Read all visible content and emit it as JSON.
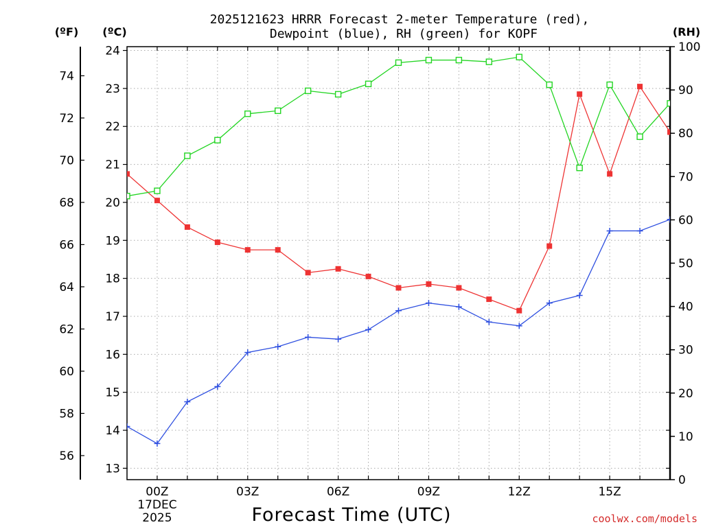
{
  "title_line1": "2025121623 HRRR Forecast 2-meter Temperature (red),",
  "title_line2": "Dewpoint (blue), RH (green) for KOPF",
  "credit": "coolwx.com/models",
  "chart_data": {
    "type": "line",
    "title": "2025121623 HRRR Forecast 2-meter Temperature (red), Dewpoint (blue), RH (green) for KOPF",
    "xlabel": "Forecast Time (UTC)",
    "x_units": "hours since 17DEC2025 00Z",
    "xlim": [
      -1,
      17
    ],
    "x_ticks": [
      {
        "x": 0,
        "label": "00Z",
        "sub1": "17DEC",
        "sub2": "2025"
      },
      {
        "x": 3,
        "label": "03Z"
      },
      {
        "x": 6,
        "label": "06Z"
      },
      {
        "x": 9,
        "label": "09Z"
      },
      {
        "x": 12,
        "label": "12Z"
      },
      {
        "x": 15,
        "label": "15Z"
      }
    ],
    "y_celsius": {
      "label": "(ºC)",
      "lim": [
        12.7,
        24.1
      ],
      "ticks": [
        13,
        14,
        15,
        16,
        17,
        18,
        19,
        20,
        21,
        22,
        23,
        24
      ]
    },
    "y_fahrenheit": {
      "label": "(ºF)",
      "ticks": [
        56,
        58,
        60,
        62,
        64,
        66,
        68,
        70,
        72,
        74
      ]
    },
    "y_rh": {
      "label": "(RH)",
      "lim": [
        0,
        100
      ],
      "ticks": [
        0,
        10,
        20,
        30,
        40,
        50,
        60,
        70,
        80,
        90,
        100
      ]
    },
    "x": [
      -1,
      0,
      1,
      2,
      3,
      4,
      5,
      6,
      7,
      8,
      9,
      10,
      11,
      12,
      13,
      14,
      15,
      16,
      17
    ],
    "series": [
      {
        "name": "Temperature",
        "axis": "celsius",
        "color": "#ee3333",
        "marker": "filled-square",
        "values": [
          20.75,
          20.05,
          19.35,
          18.95,
          18.75,
          18.75,
          18.15,
          18.25,
          18.05,
          17.75,
          17.85,
          17.75,
          17.45,
          17.15,
          18.85,
          22.85,
          20.75,
          23.05,
          21.85
        ]
      },
      {
        "name": "Dewpoint",
        "axis": "celsius",
        "color": "#2e4fe0",
        "marker": "plus",
        "values": [
          14.1,
          13.65,
          14.75,
          15.15,
          16.05,
          16.2,
          16.45,
          16.4,
          16.65,
          17.15,
          17.35,
          17.25,
          16.85,
          16.75,
          17.35,
          17.55,
          19.25,
          19.25,
          19.55
        ]
      },
      {
        "name": "RH",
        "axis": "rh",
        "color": "#22d522",
        "marker": "open-square",
        "values": [
          65.5,
          66.7,
          74.8,
          78.4,
          84.5,
          85.2,
          89.8,
          89.0,
          91.4,
          96.3,
          96.9,
          96.9,
          96.5,
          97.6,
          91.2,
          72.0,
          91.2,
          79.2,
          86.9
        ]
      }
    ]
  }
}
